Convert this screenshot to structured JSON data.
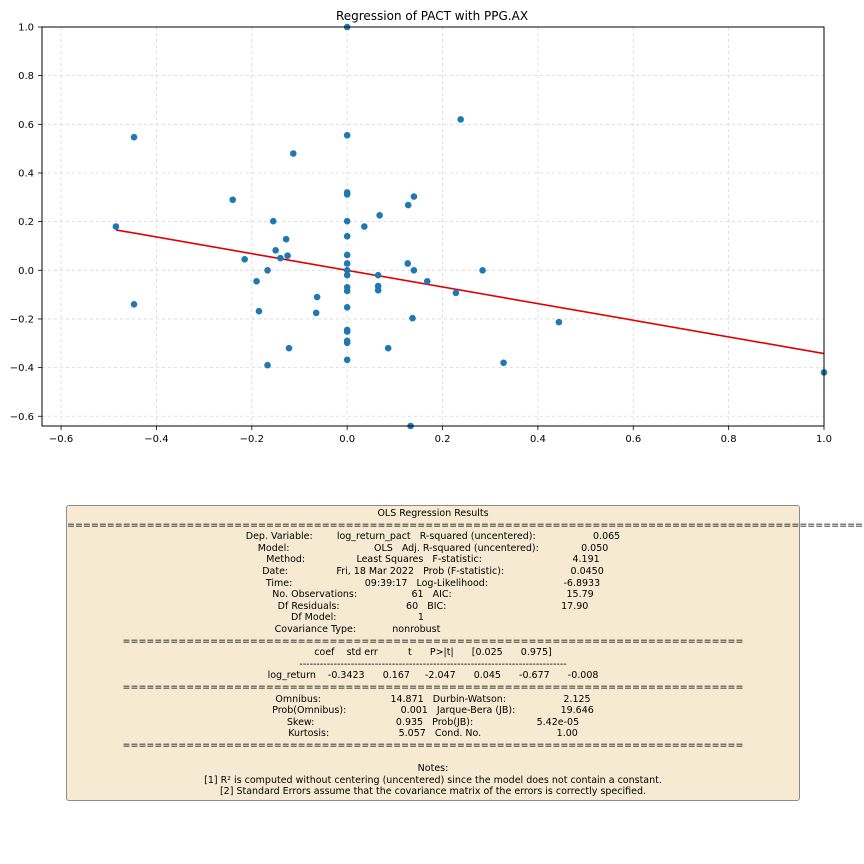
{
  "chart_data": {
    "type": "scatter",
    "title": "Regression of PACT with PPG.AX",
    "xlabel": "",
    "ylabel": "",
    "xlim": [
      -0.64,
      1.0
    ],
    "ylim": [
      -0.64,
      1.0
    ],
    "grid": true,
    "x_ticks": [
      "−0.6",
      "−0.4",
      "−0.2",
      "0.0",
      "0.2",
      "0.4",
      "0.6",
      "0.8",
      "1.0"
    ],
    "y_ticks": [
      "−0.6",
      "−0.4",
      "−0.2",
      "0.0",
      "0.2",
      "0.4",
      "0.6",
      "0.8",
      "1.0"
    ],
    "x_tick_values": [
      -0.6,
      -0.4,
      -0.2,
      0.0,
      0.2,
      0.4,
      0.6,
      0.8,
      1.0
    ],
    "y_tick_values": [
      -0.6,
      -0.4,
      -0.2,
      0.0,
      0.2,
      0.4,
      0.6,
      0.8,
      1.0
    ],
    "point_color": "#1f77b4",
    "line_color": "#e00000",
    "points": [
      [
        0.0,
        1.0
      ],
      [
        0.238,
        0.62
      ],
      [
        -0.447,
        0.547
      ],
      [
        0.0,
        0.555
      ],
      [
        -0.113,
        0.48
      ],
      [
        0.0,
        0.32
      ],
      [
        0.0,
        0.312
      ],
      [
        0.14,
        0.303
      ],
      [
        -0.24,
        0.29
      ],
      [
        0.128,
        0.268
      ],
      [
        0.068,
        0.226
      ],
      [
        -0.155,
        0.202
      ],
      [
        0.0,
        0.202
      ],
      [
        0.036,
        0.18
      ],
      [
        -0.485,
        0.18
      ],
      [
        0.0,
        0.14
      ],
      [
        -0.128,
        0.128
      ],
      [
        -0.15,
        0.082
      ],
      [
        0.0,
        0.063
      ],
      [
        -0.125,
        0.06
      ],
      [
        -0.14,
        0.05
      ],
      [
        -0.215,
        0.045
      ],
      [
        0.0,
        0.028
      ],
      [
        0.127,
        0.028
      ],
      [
        -0.167,
        0.0
      ],
      [
        0.0,
        0.0
      ],
      [
        0.14,
        0.0
      ],
      [
        0.284,
        0.0
      ],
      [
        0.0,
        -0.02
      ],
      [
        0.065,
        -0.02
      ],
      [
        -0.19,
        -0.045
      ],
      [
        0.168,
        -0.045
      ],
      [
        0.065,
        -0.065
      ],
      [
        0.0,
        -0.07
      ],
      [
        0.065,
        -0.082
      ],
      [
        0.0,
        -0.085
      ],
      [
        0.228,
        -0.093
      ],
      [
        -0.063,
        -0.11
      ],
      [
        -0.447,
        -0.14
      ],
      [
        0.0,
        -0.152
      ],
      [
        -0.185,
        -0.168
      ],
      [
        -0.065,
        -0.175
      ],
      [
        0.137,
        -0.197
      ],
      [
        0.444,
        -0.213
      ],
      [
        0.0,
        -0.245
      ],
      [
        0.0,
        -0.252
      ],
      [
        0.0,
        -0.29
      ],
      [
        0.0,
        -0.298
      ],
      [
        -0.122,
        -0.32
      ],
      [
        0.086,
        -0.32
      ],
      [
        0.0,
        -0.368
      ],
      [
        0.328,
        -0.38
      ],
      [
        -0.167,
        -0.39
      ],
      [
        1.0,
        -0.42
      ],
      [
        0.133,
        -0.64
      ]
    ],
    "regression_line": {
      "x": [
        -0.485,
        1.0
      ],
      "slope": -0.3423,
      "intercept": 0.0
    }
  },
  "summary": {
    "text": "OLS Regression Results\n=======================================================================================================\nDep. Variable:        log_return_pact   R-squared (uncentered):                   0.065\nModel:                            OLS   Adj. R-squared (uncentered):              0.050\nMethod:                 Least Squares   F-statistic:                              4.191\nDate:                Fri, 18 Mar 2022   Prob (F-statistic):                      0.0450\nTime:                        09:39:17   Log-Likelihood:                         -6.8933\nNo. Observations:                  61   AIC:                                      15.79\nDf Residuals:                      60   BIC:                                      17.90\nDf Model:                           1                                                  \nCovariance Type:            nonrobust                                                  \n==============================================================================\ncoef    std err          t      P>|t|      [0.025      0.975]\n------------------------------------------------------------------------------\nlog_return    -0.3423      0.167     -2.047      0.045      -0.677      -0.008\n==============================================================================\nOmnibus:                       14.871   Durbin-Watson:                   2.125\nProb(Omnibus):                  0.001   Jarque-Bera (JB):               19.646\nSkew:                           0.935   Prob(JB):                     5.42e-05\nKurtosis:                       5.057   Cond. No.                         1.00\n==============================================================================\n\nNotes:\n[1] R² is computed without centering (uncentered) since the model does not contain a constant.\n[2] Standard Errors assume that the covariance matrix of the errors is correctly specified."
  }
}
